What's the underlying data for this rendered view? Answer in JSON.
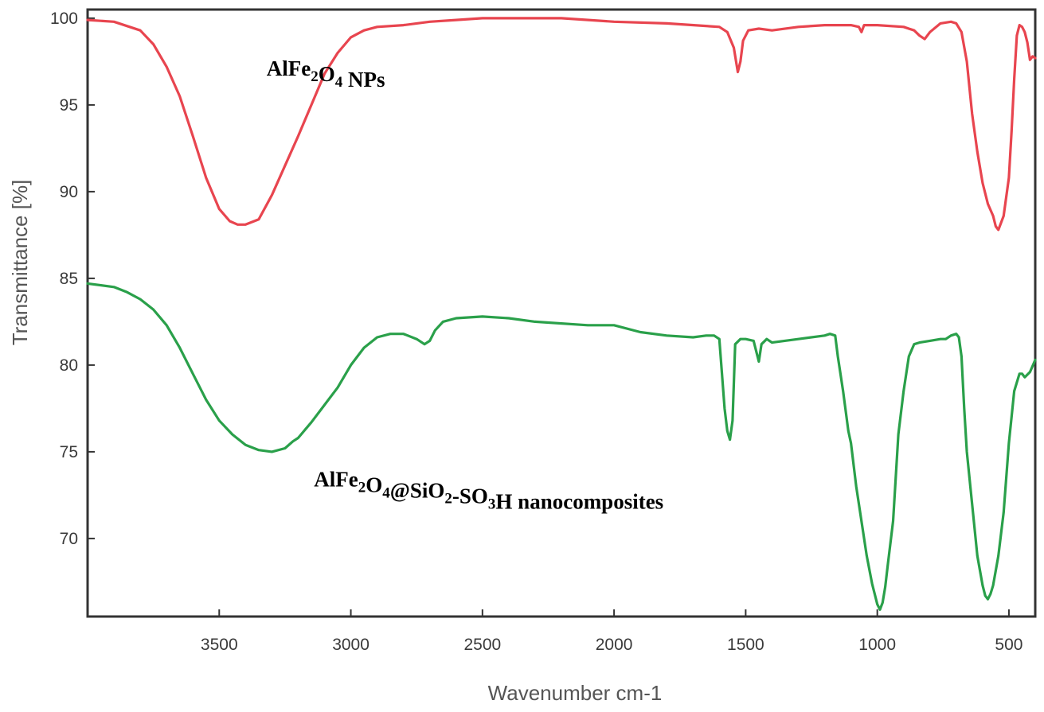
{
  "chart_data": {
    "type": "line",
    "title": "",
    "xlabel": "Wavenumber cm-1",
    "ylabel": "Transmittance [%]",
    "xlim": [
      4000,
      400
    ],
    "ylim": [
      65.5,
      100.5
    ],
    "x_reversed": true,
    "grid": false,
    "x_ticks": [
      3500,
      3000,
      2500,
      2000,
      1500,
      1000,
      500
    ],
    "x_tick_labels": [
      "3500",
      "3000",
      "2500",
      "2000",
      "1500",
      "1000",
      "500"
    ],
    "y_ticks": [
      70,
      75,
      80,
      85,
      90,
      95,
      100
    ],
    "y_tick_labels": [
      "70",
      "75",
      "80",
      "85",
      "90",
      "95",
      "100"
    ],
    "annotations": [
      {
        "id": "a1",
        "parts": [
          [
            "AlFe",
            ""
          ],
          [
            "2",
            "sub"
          ],
          [
            "O",
            ""
          ],
          [
            "4",
            "sub"
          ],
          [
            " NPs",
            ""
          ]
        ],
        "x": 3320,
        "y": 96.7
      },
      {
        "id": "a2",
        "parts": [
          [
            "AlFe",
            ""
          ],
          [
            "2",
            "sub"
          ],
          [
            "O",
            ""
          ],
          [
            "4",
            "sub"
          ],
          [
            "@SiO",
            ""
          ],
          [
            "2",
            "sub"
          ],
          [
            "-SO",
            ""
          ],
          [
            "3",
            "sub"
          ],
          [
            "H nanocomposites",
            ""
          ]
        ],
        "x": 3140,
        "y": 73.0
      }
    ],
    "series": [
      {
        "name": "AlFe2O4 NPs",
        "color": "#e8454f",
        "x": [
          4000,
          3900,
          3800,
          3750,
          3700,
          3650,
          3600,
          3550,
          3500,
          3460,
          3430,
          3400,
          3350,
          3300,
          3250,
          3200,
          3150,
          3100,
          3050,
          3000,
          2950,
          2900,
          2800,
          2700,
          2600,
          2500,
          2400,
          2200,
          2000,
          1800,
          1600,
          1570,
          1545,
          1530,
          1520,
          1510,
          1490,
          1450,
          1400,
          1300,
          1200,
          1100,
          1070,
          1060,
          1050,
          1000,
          900,
          860,
          840,
          820,
          800,
          760,
          720,
          700,
          680,
          660,
          640,
          620,
          600,
          580,
          560,
          550,
          540,
          520,
          500,
          490,
          480,
          470,
          460,
          450,
          440,
          430,
          420,
          410,
          400
        ],
        "y": [
          99.9,
          99.8,
          99.3,
          98.5,
          97.2,
          95.5,
          93.2,
          90.8,
          89.0,
          88.3,
          88.1,
          88.1,
          88.4,
          89.8,
          91.5,
          93.2,
          95.0,
          96.8,
          98.0,
          98.9,
          99.3,
          99.5,
          99.6,
          99.8,
          99.9,
          100.0,
          100.0,
          100.0,
          99.8,
          99.7,
          99.5,
          99.2,
          98.3,
          96.9,
          97.5,
          98.7,
          99.3,
          99.4,
          99.3,
          99.5,
          99.6,
          99.6,
          99.5,
          99.2,
          99.6,
          99.6,
          99.5,
          99.3,
          99.0,
          98.8,
          99.2,
          99.7,
          99.8,
          99.7,
          99.2,
          97.5,
          94.5,
          92.3,
          90.5,
          89.3,
          88.6,
          88.0,
          87.8,
          88.6,
          90.8,
          93.5,
          96.5,
          99.0,
          99.6,
          99.5,
          99.2,
          98.6,
          97.6,
          97.8,
          97.7
        ]
      },
      {
        "name": "AlFe2O4@SiO2-SO3H nanocomposites",
        "color": "#2aa04a",
        "x": [
          4000,
          3900,
          3850,
          3800,
          3750,
          3700,
          3650,
          3600,
          3550,
          3500,
          3450,
          3400,
          3350,
          3300,
          3250,
          3220,
          3200,
          3150,
          3100,
          3050,
          3000,
          2950,
          2900,
          2850,
          2800,
          2750,
          2720,
          2700,
          2680,
          2650,
          2600,
          2500,
          2400,
          2300,
          2100,
          2000,
          1900,
          1800,
          1700,
          1650,
          1620,
          1600,
          1590,
          1580,
          1570,
          1560,
          1550,
          1540,
          1520,
          1500,
          1470,
          1450,
          1440,
          1420,
          1400,
          1300,
          1200,
          1180,
          1160,
          1150,
          1130,
          1110,
          1100,
          1080,
          1060,
          1040,
          1020,
          1000,
          990,
          980,
          970,
          960,
          940,
          920,
          900,
          880,
          860,
          840,
          800,
          760,
          740,
          720,
          700,
          690,
          680,
          670,
          660,
          640,
          620,
          600,
          590,
          580,
          570,
          560,
          540,
          520,
          500,
          480,
          460,
          450,
          440,
          420,
          400
        ],
        "y": [
          84.7,
          84.5,
          84.2,
          83.8,
          83.2,
          82.3,
          81.0,
          79.5,
          78.0,
          76.8,
          76.0,
          75.4,
          75.1,
          75.0,
          75.2,
          75.6,
          75.8,
          76.7,
          77.7,
          78.7,
          80.0,
          81.0,
          81.6,
          81.8,
          81.8,
          81.5,
          81.2,
          81.4,
          82.0,
          82.5,
          82.7,
          82.8,
          82.7,
          82.5,
          82.3,
          82.3,
          81.9,
          81.7,
          81.6,
          81.7,
          81.7,
          81.5,
          79.5,
          77.5,
          76.2,
          75.7,
          76.8,
          81.2,
          81.5,
          81.5,
          81.4,
          80.2,
          81.2,
          81.5,
          81.3,
          81.5,
          81.7,
          81.8,
          81.7,
          80.5,
          78.5,
          76.2,
          75.5,
          73.0,
          71.0,
          69.0,
          67.4,
          66.2,
          65.9,
          66.3,
          67.2,
          68.5,
          71.0,
          76.0,
          78.5,
          80.5,
          81.2,
          81.3,
          81.4,
          81.5,
          81.5,
          81.7,
          81.8,
          81.6,
          80.5,
          77.5,
          75.0,
          72.0,
          69.0,
          67.3,
          66.7,
          66.5,
          66.8,
          67.3,
          69.0,
          71.5,
          75.5,
          78.5,
          79.5,
          79.5,
          79.3,
          79.6,
          80.3
        ]
      }
    ]
  }
}
